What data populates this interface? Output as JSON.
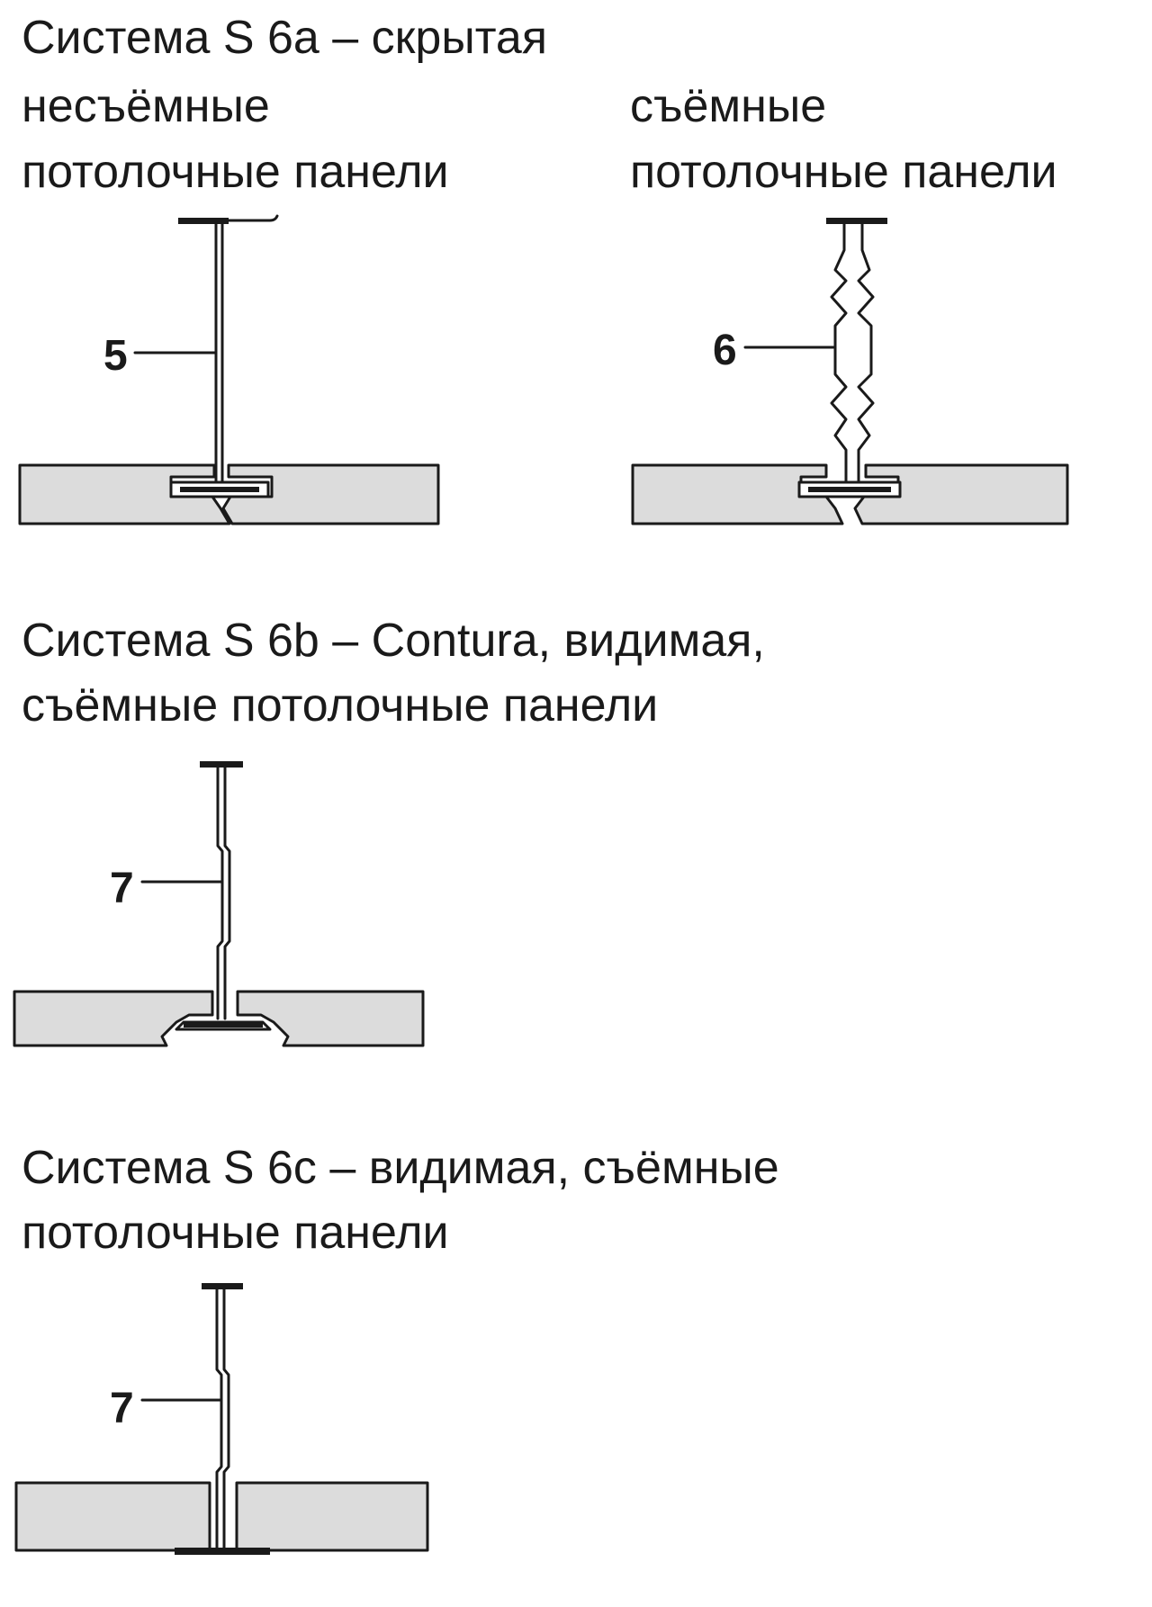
{
  "s6a": {
    "title": "Система S 6a – скрытая",
    "left_line1": "несъёмные",
    "left_line2": "потолочные панели",
    "right_line1": "съёмные",
    "right_line2": "потолочные панели",
    "callout_left": "5",
    "callout_right": "6"
  },
  "s6b": {
    "title_line1": "Система S 6b – Contura, видимая,",
    "title_line2": "съёмные потолочные панели",
    "callout": "7"
  },
  "s6c": {
    "title_line1": "Система S 6c – видимая, съёмные",
    "title_line2": "потолочные панели",
    "callout": "7"
  },
  "colors": {
    "panel_fill": "#dcdcdc",
    "line": "#1a1a1a"
  }
}
